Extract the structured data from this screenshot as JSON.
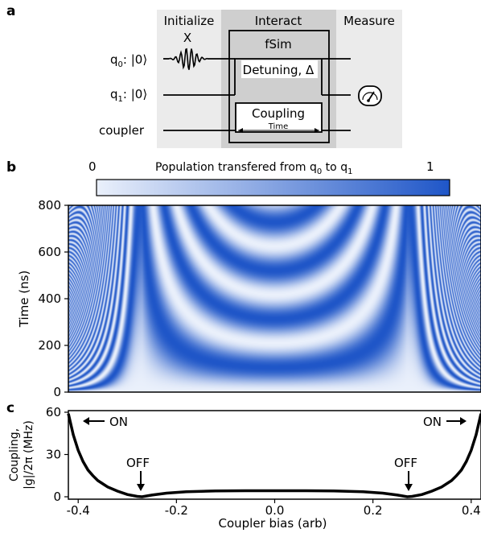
{
  "panels": {
    "a": "a",
    "b": "b",
    "c": "c"
  },
  "circuit": {
    "sections": [
      "Initialize",
      "Interact",
      "Measure"
    ],
    "qubits": [
      {
        "label": "q",
        "sub": "0",
        "ket": ": |0⟩"
      },
      {
        "label": "q",
        "sub": "1",
        "ket": ": |0⟩"
      }
    ],
    "coupler_label": "coupler",
    "x_gate": "X",
    "fsim_label": "fSim",
    "detuning_label": "Detuning, Δ",
    "coupling_label": "Coupling",
    "time_label": "Time",
    "measure_icon": "meter-icon",
    "colors": {
      "initialize_bg": "#ebebeb",
      "interact_bg": "#cfcfcf",
      "measure_bg": "#ebebeb"
    }
  },
  "colorbar": {
    "title_main": "Population transfered from q",
    "title_sub0": "0",
    "title_to": " to q",
    "title_sub1": "1",
    "min_label": "0",
    "max_label": "1",
    "color_low": "#eaf0fb",
    "color_high": "#1f56c8"
  },
  "heatmap": {
    "ylabel": "Time (ns)",
    "yticks": [
      "0",
      "200",
      "400",
      "600",
      "800"
    ],
    "ylim": [
      0,
      800
    ],
    "xlim": [
      -0.42,
      0.42
    ]
  },
  "chart_data": {
    "type": "line",
    "xlabel": "Coupler bias (arb)",
    "ylabel_line1": "Coupling,",
    "ylabel_line2": "|g|/2π (MHz)",
    "xlim": [
      -0.42,
      0.42
    ],
    "ylim": [
      0,
      60
    ],
    "xticks": [
      "-0.4",
      "-0.2",
      "0.0",
      "0.2",
      "0.4"
    ],
    "yticks": [
      "0",
      "30",
      "60"
    ],
    "x": [
      -0.42,
      -0.41,
      -0.4,
      -0.39,
      -0.38,
      -0.37,
      -0.36,
      -0.34,
      -0.32,
      -0.3,
      -0.28,
      -0.27,
      -0.25,
      -0.22,
      -0.18,
      -0.12,
      -0.06,
      0.0,
      0.06,
      0.12,
      0.18,
      0.22,
      0.25,
      0.27,
      0.28,
      0.3,
      0.32,
      0.34,
      0.36,
      0.37,
      0.38,
      0.39,
      0.4,
      0.41,
      0.42
    ],
    "y": [
      59,
      44,
      33,
      25,
      19,
      15,
      11.5,
      7,
      4,
      1.6,
      0.3,
      0,
      1.2,
      2.6,
      3.6,
      4.1,
      4.3,
      4.3,
      4.3,
      4.1,
      3.6,
      2.6,
      1.2,
      0,
      0.3,
      1.6,
      4,
      7,
      11.5,
      15,
      19,
      25,
      33,
      44,
      59
    ],
    "annotations": {
      "on": "ON",
      "off": "OFF"
    }
  }
}
